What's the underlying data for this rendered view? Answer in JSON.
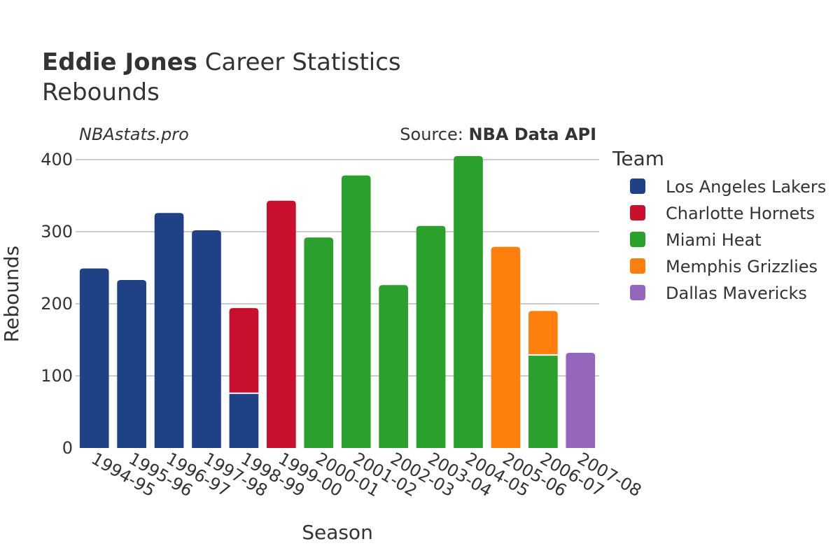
{
  "header": {
    "title_bold": "Eddie Jones",
    "title_rest": "Career Statistics",
    "subtitle": "Rebounds",
    "brand": "NBAstats.pro",
    "source_prefix": "Source:",
    "source_name": "NBA Data API"
  },
  "chart_data": {
    "type": "bar",
    "stacked": true,
    "title": "Eddie Jones Career Statistics",
    "subtitle": "Rebounds",
    "xlabel": "Season",
    "ylabel": "Rebounds",
    "ylim": [
      0,
      400
    ],
    "yticks": [
      0,
      100,
      200,
      300,
      400
    ],
    "grid": true,
    "legend_title": "Team",
    "legend_position": "right",
    "categories": [
      "1994-95",
      "1995-96",
      "1996-97",
      "1997-98",
      "1998-99",
      "1999-00",
      "2000-01",
      "2001-02",
      "2002-03",
      "2003-04",
      "2004-05",
      "2005-06",
      "2006-07",
      "2007-08"
    ],
    "series": [
      {
        "name": "Los Angeles Lakers",
        "color": "#1f4287",
        "values": [
          249,
          233,
          326,
          302,
          76,
          0,
          0,
          0,
          0,
          0,
          0,
          0,
          0,
          0
        ]
      },
      {
        "name": "Charlotte Hornets",
        "color": "#c8102e",
        "values": [
          0,
          0,
          0,
          0,
          118,
          343,
          0,
          0,
          0,
          0,
          0,
          0,
          0,
          0
        ]
      },
      {
        "name": "Miami Heat",
        "color": "#2ca02c",
        "values": [
          0,
          0,
          0,
          0,
          0,
          0,
          292,
          378,
          226,
          308,
          405,
          0,
          129,
          0
        ]
      },
      {
        "name": "Memphis Grizzlies",
        "color": "#ff7f0e",
        "values": [
          0,
          0,
          0,
          0,
          0,
          0,
          0,
          0,
          0,
          0,
          0,
          279,
          61,
          0
        ]
      },
      {
        "name": "Dallas Mavericks",
        "color": "#9467bd",
        "values": [
          0,
          0,
          0,
          0,
          0,
          0,
          0,
          0,
          0,
          0,
          0,
          0,
          0,
          132
        ]
      }
    ]
  }
}
